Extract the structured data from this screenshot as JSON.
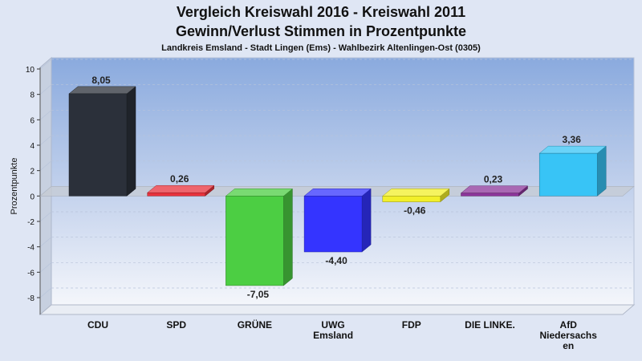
{
  "chart_data": {
    "type": "bar",
    "title": "Vergleich Kreiswahl 2016 - Kreiswahl 2011",
    "title_line2": "Gewinn/Verlust Stimmen in Prozentpunkte",
    "subtitle": "Landkreis Emsland - Stadt Lingen (Ems) - Wahlbezirk Altenlingen-Ost (0305)",
    "ylabel": "Prozentpunkte",
    "xlabel": "",
    "ylim": [
      -9,
      10
    ],
    "yticks": [
      10,
      8,
      6,
      4,
      2,
      0,
      -2,
      -4,
      -6,
      -8
    ],
    "categories": [
      "CDU",
      "SPD",
      "GRÜNE",
      "UWG Emsland",
      "FDP",
      "DIE LINKE.",
      "AfD Niedersachsen"
    ],
    "category_labels": [
      [
        "CDU"
      ],
      [
        "SPD"
      ],
      [
        "GRÜNE"
      ],
      [
        "UWG",
        "Emsland"
      ],
      [
        "FDP"
      ],
      [
        "DIE LINKE."
      ],
      [
        "AfD",
        "Niedersachs",
        "en"
      ]
    ],
    "values": [
      8.05,
      0.26,
      -7.05,
      -4.4,
      -0.46,
      0.23,
      3.36
    ],
    "value_labels": [
      "8,05",
      "0,26",
      "-7,05",
      "-4,40",
      "-0,46",
      "0,23",
      "3,36"
    ],
    "colors": [
      "#2b303a",
      "#e8323c",
      "#4cce43",
      "#3434ff",
      "#f2ef2a",
      "#8c359a",
      "#38c4f6"
    ],
    "grid": true,
    "legend": "none"
  }
}
